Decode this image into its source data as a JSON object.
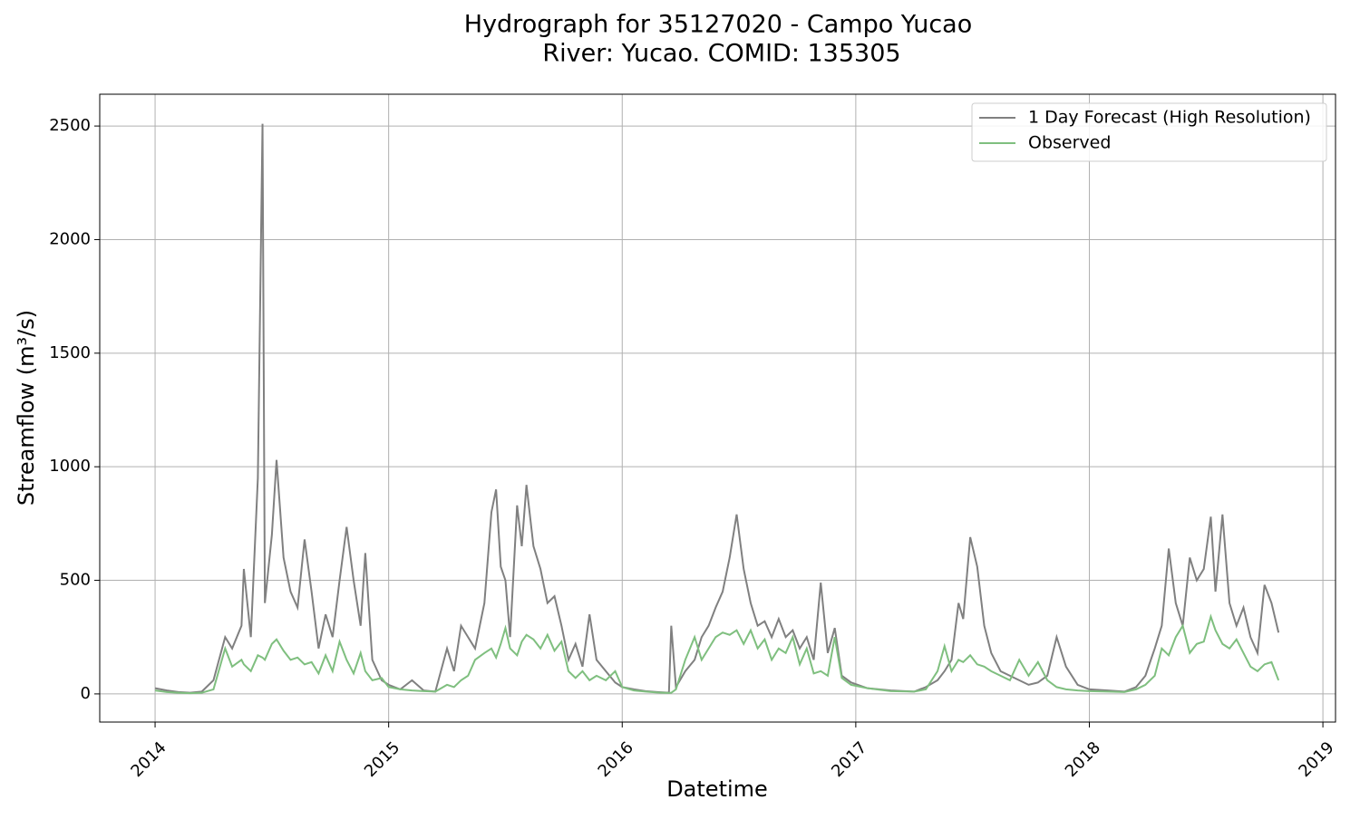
{
  "chart_data": {
    "type": "line",
    "title": "Hydrograph for 35127020 - Campo Yucao",
    "subtitle": "River: Yucao. COMID: 135305",
    "x_label": "Datetime",
    "y_label": "Streamflow (m³/s)",
    "x": [
      2014.0,
      2014.05,
      2014.1,
      2014.15,
      2014.2,
      2014.25,
      2014.3,
      2014.33,
      2014.37,
      2014.38,
      2014.41,
      2014.44,
      2014.46,
      2014.47,
      2014.5,
      2014.52,
      2014.55,
      2014.58,
      2014.61,
      2014.64,
      2014.67,
      2014.7,
      2014.73,
      2014.76,
      2014.79,
      2014.82,
      2014.85,
      2014.88,
      2014.9,
      2014.93,
      2014.97,
      2015.0,
      2015.05,
      2015.1,
      2015.15,
      2015.2,
      2015.25,
      2015.28,
      2015.31,
      2015.34,
      2015.37,
      2015.41,
      2015.44,
      2015.46,
      2015.48,
      2015.5,
      2015.52,
      2015.55,
      2015.57,
      2015.59,
      2015.62,
      2015.65,
      2015.68,
      2015.71,
      2015.74,
      2015.77,
      2015.8,
      2015.83,
      2015.86,
      2015.89,
      2015.93,
      2015.97,
      2016.0,
      2016.05,
      2016.1,
      2016.15,
      2016.2,
      2016.21,
      2016.23,
      2016.27,
      2016.31,
      2016.34,
      2016.37,
      2016.4,
      2016.43,
      2016.46,
      2016.49,
      2016.52,
      2016.55,
      2016.58,
      2016.61,
      2016.64,
      2016.67,
      2016.7,
      2016.73,
      2016.76,
      2016.79,
      2016.82,
      2016.85,
      2016.88,
      2016.91,
      2016.94,
      2016.98,
      2017.05,
      2017.15,
      2017.25,
      2017.3,
      2017.35,
      2017.38,
      2017.41,
      2017.44,
      2017.46,
      2017.49,
      2017.52,
      2017.55,
      2017.58,
      2017.62,
      2017.66,
      2017.7,
      2017.74,
      2017.78,
      2017.82,
      2017.86,
      2017.9,
      2017.95,
      2018.0,
      2018.08,
      2018.15,
      2018.2,
      2018.24,
      2018.28,
      2018.31,
      2018.34,
      2018.37,
      2018.4,
      2018.43,
      2018.46,
      2018.49,
      2018.52,
      2018.54,
      2018.57,
      2018.6,
      2018.63,
      2018.66,
      2018.69,
      2018.72,
      2018.75,
      2018.78,
      2018.81
    ],
    "series": [
      {
        "name": "1 Day Forecast (High Resolution)",
        "color": "#808080",
        "values": [
          25,
          15,
          8,
          5,
          10,
          60,
          250,
          200,
          300,
          550,
          250,
          950,
          2510,
          400,
          700,
          1030,
          600,
          450,
          380,
          680,
          450,
          200,
          350,
          250,
          500,
          735,
          500,
          300,
          620,
          150,
          60,
          40,
          20,
          60,
          15,
          10,
          200,
          100,
          300,
          250,
          200,
          400,
          800,
          900,
          560,
          500,
          250,
          830,
          650,
          920,
          650,
          550,
          400,
          430,
          300,
          150,
          220,
          120,
          350,
          150,
          100,
          50,
          30,
          20,
          12,
          8,
          5,
          300,
          30,
          100,
          150,
          250,
          300,
          380,
          450,
          600,
          790,
          550,
          400,
          300,
          320,
          250,
          330,
          250,
          280,
          200,
          250,
          150,
          490,
          180,
          290,
          80,
          50,
          25,
          15,
          10,
          30,
          60,
          100,
          150,
          400,
          330,
          690,
          560,
          300,
          180,
          100,
          80,
          60,
          40,
          50,
          80,
          250,
          120,
          40,
          20,
          15,
          10,
          30,
          80,
          200,
          300,
          640,
          400,
          300,
          600,
          500,
          550,
          780,
          450,
          790,
          400,
          300,
          380,
          250,
          180,
          480,
          400,
          270
        ]
      },
      {
        "name": "Observed",
        "color": "#7fbf7f",
        "values": [
          15,
          8,
          5,
          3,
          5,
          20,
          200,
          120,
          150,
          130,
          100,
          170,
          160,
          150,
          220,
          240,
          190,
          150,
          160,
          130,
          140,
          90,
          170,
          100,
          230,
          150,
          90,
          180,
          100,
          60,
          70,
          30,
          20,
          15,
          12,
          10,
          40,
          30,
          60,
          80,
          150,
          180,
          200,
          160,
          220,
          290,
          200,
          170,
          230,
          260,
          240,
          200,
          260,
          190,
          230,
          100,
          70,
          100,
          60,
          80,
          60,
          100,
          30,
          15,
          10,
          6,
          4,
          5,
          20,
          150,
          250,
          150,
          200,
          250,
          270,
          260,
          280,
          220,
          280,
          200,
          240,
          150,
          200,
          180,
          250,
          130,
          200,
          90,
          100,
          80,
          250,
          70,
          40,
          25,
          12,
          10,
          20,
          100,
          210,
          100,
          150,
          140,
          170,
          130,
          120,
          100,
          80,
          60,
          150,
          80,
          140,
          60,
          30,
          20,
          15,
          12,
          10,
          8,
          20,
          40,
          80,
          200,
          170,
          250,
          300,
          180,
          220,
          230,
          340,
          280,
          220,
          200,
          240,
          180,
          120,
          100,
          130,
          140,
          60
        ]
      }
    ],
    "xlim": [
      2013.763,
      2019.054
    ],
    "xticks": [
      2014,
      2015,
      2016,
      2017,
      2018,
      2019
    ],
    "ylim": [
      -124,
      2640
    ],
    "yticks": [
      0,
      500,
      1000,
      1500,
      2000,
      2500
    ],
    "grid": true,
    "legend": "upper-right"
  }
}
